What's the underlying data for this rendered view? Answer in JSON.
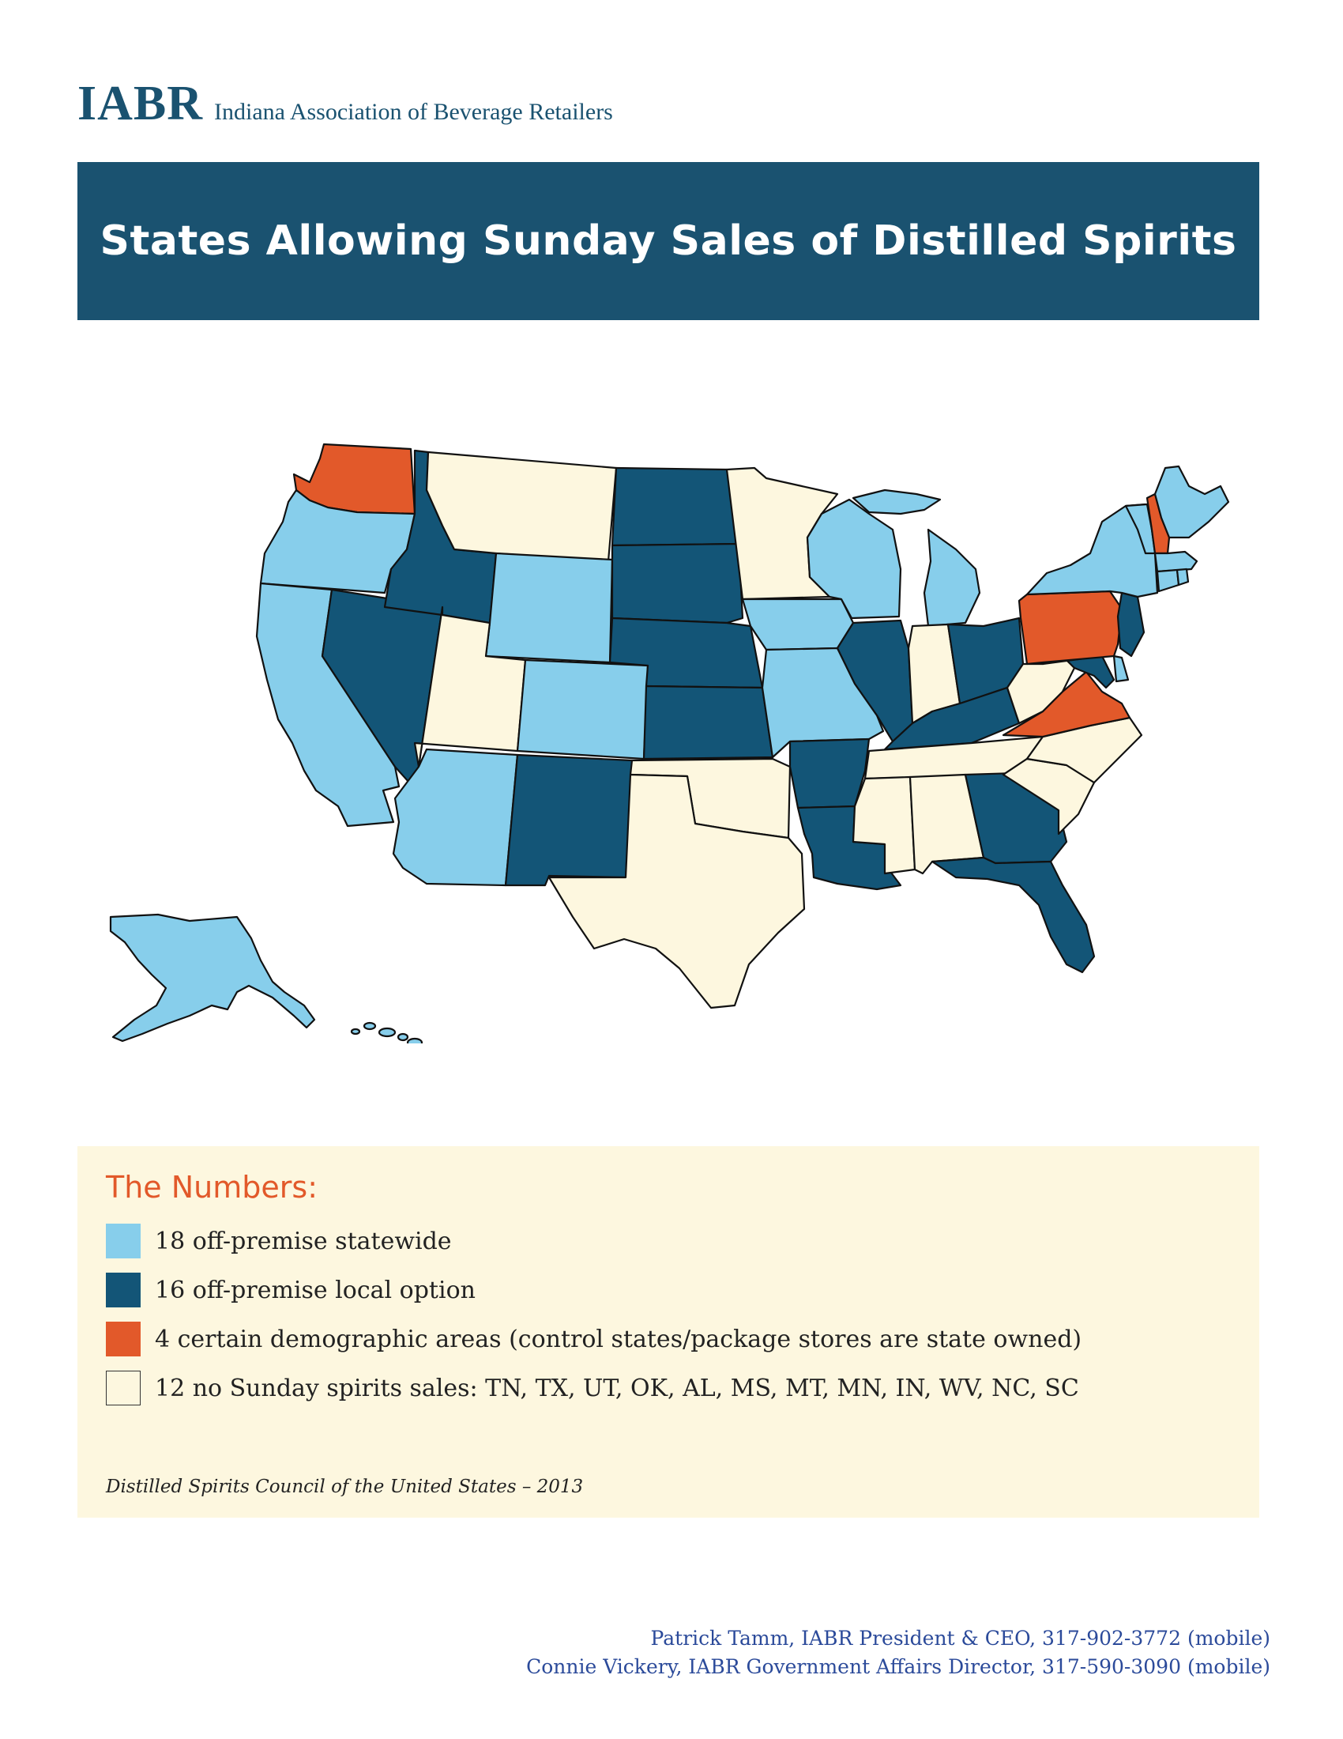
{
  "header": {
    "logo_abbr": "IABR",
    "logo_name": "Indiana Association of Beverage Retailers"
  },
  "banner": {
    "title": "States Allowing Sunday Sales of Distilled Spirits"
  },
  "colors": {
    "statewide": "#87ceeb",
    "local_option": "#135577",
    "demographic": "#e2592a",
    "none": "#fdf7df",
    "brand": "#1a5270"
  },
  "map": {
    "statewide": [
      "OR",
      "CA",
      "WY",
      "CO",
      "AZ",
      "AK",
      "HI",
      "IA",
      "MO",
      "WI",
      "MI",
      "NY",
      "VT",
      "ME",
      "MA",
      "RI",
      "CT",
      "DE"
    ],
    "local_option": [
      "ID",
      "NV",
      "ND",
      "SD",
      "NE",
      "KS",
      "NM",
      "AR",
      "LA",
      "IL",
      "KY",
      "OH",
      "GA",
      "FL",
      "NJ",
      "MD"
    ],
    "demographic": [
      "WA",
      "PA",
      "VA",
      "NH"
    ],
    "none": [
      "TN",
      "TX",
      "UT",
      "OK",
      "AL",
      "MS",
      "MT",
      "MN",
      "IN",
      "WV",
      "NC",
      "SC"
    ]
  },
  "legend": {
    "title": "The Numbers:",
    "items": [
      {
        "key": "statewide",
        "label": "18 off-premise statewide"
      },
      {
        "key": "local_option",
        "label": "16 off-premise local option"
      },
      {
        "key": "demographic",
        "label": "4 certain demographic areas (control states/package stores are state owned)"
      },
      {
        "key": "none",
        "label": "12 no Sunday spirits sales: TN, TX, UT, OK, AL, MS, MT, MN, IN, WV, NC, SC"
      }
    ],
    "source": "Distilled Spirits Council of the United States – 2013"
  },
  "footer": {
    "line1": "Patrick Tamm, IABR President & CEO, 317-902-3772 (mobile)",
    "line2": "Connie Vickery, IABR Government Affairs Director, 317-590-3090 (mobile)"
  }
}
